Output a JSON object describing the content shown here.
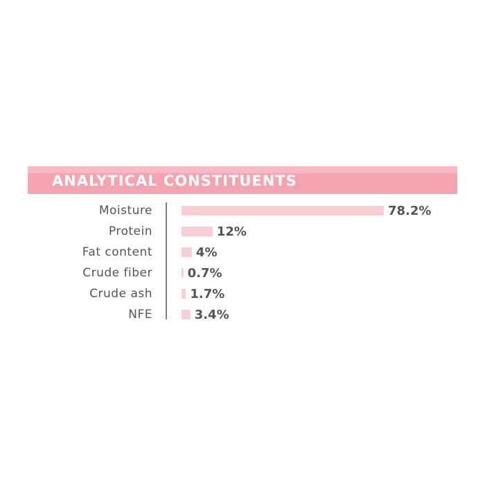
{
  "chart_data": {
    "type": "bar",
    "orientation": "horizontal",
    "title": "ANALYTICAL CONSTITUENTS",
    "categories": [
      "Moisture",
      "Protein",
      "Fat content",
      "Crude fiber",
      "Crude ash",
      "NFE"
    ],
    "values": [
      78.2,
      12,
      4,
      0.7,
      1.7,
      3.4
    ],
    "value_labels": [
      "78.2%",
      "12%",
      "4%",
      "0.7%",
      "1.7%",
      "3.4%"
    ],
    "color": "#f7cdd6",
    "banner_color": "#f4a3b1"
  }
}
